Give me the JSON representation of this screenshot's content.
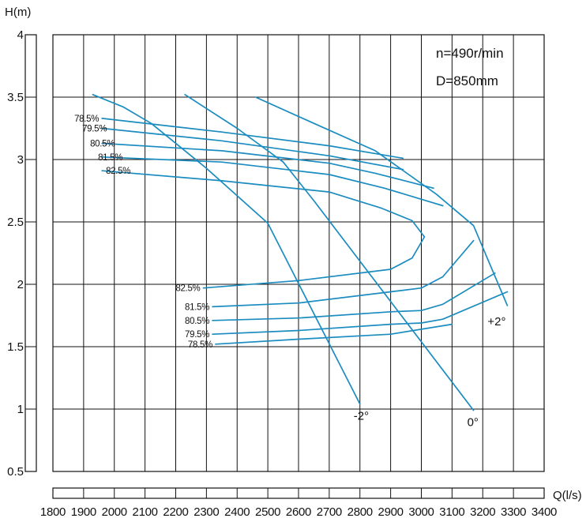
{
  "chart_data": {
    "type": "line",
    "title": "",
    "annotations": [
      "n=490r/min",
      "D=850mm"
    ],
    "xlabel": "Q(l/s)",
    "ylabel": "H(m)",
    "xlim": [
      1800,
      3400
    ],
    "ylim": [
      0.5,
      4
    ],
    "x_ticks": [
      "1800",
      "1900",
      "2000",
      "2100",
      "2200",
      "2300",
      "2400",
      "2500",
      "2600",
      "2700",
      "2800",
      "2900",
      "3000",
      "3100",
      "3200",
      "3300",
      "3400"
    ],
    "y_ticks": [
      {
        "value": 4,
        "label": "4"
      },
      {
        "value": 3.5,
        "label": "3.5"
      },
      {
        "value": 3,
        "label": "3"
      },
      {
        "value": 2.5,
        "label": "2.5"
      },
      {
        "value": 2,
        "label": "2"
      },
      {
        "value": 1.5,
        "label": "1.5"
      },
      {
        "value": 1,
        "label": "1"
      },
      {
        "value": 0.5,
        "label": "0.5"
      }
    ],
    "grid": true,
    "blade_angle_curves": [
      {
        "label": "-2°",
        "points": [
          [
            1930,
            3.52
          ],
          [
            2030,
            3.42
          ],
          [
            2120,
            3.29
          ],
          [
            2300,
            2.93
          ],
          [
            2500,
            2.49
          ],
          [
            2800,
            1.04
          ]
        ]
      },
      {
        "label": "0°",
        "points": [
          [
            2230,
            3.52
          ],
          [
            2400,
            3.25
          ],
          [
            2550,
            2.98
          ],
          [
            2650,
            2.67
          ],
          [
            3170,
            0.99
          ]
        ]
      },
      {
        "label": "+2°",
        "points": [
          [
            2460,
            3.5
          ],
          [
            2650,
            3.29
          ],
          [
            2850,
            3.07
          ],
          [
            3050,
            2.72
          ],
          [
            3170,
            2.47
          ],
          [
            3280,
            1.83
          ]
        ]
      }
    ],
    "efficiency_contours": [
      {
        "label": "78.5%",
        "upper": [
          [
            1960,
            3.33
          ],
          [
            2350,
            3.22
          ],
          [
            2700,
            3.11
          ],
          [
            2940,
            3.01
          ]
        ],
        "lower": [
          [
            2330,
            1.52
          ],
          [
            2600,
            1.56
          ],
          [
            2900,
            1.6
          ],
          [
            3100,
            1.68
          ]
        ]
      },
      {
        "label": "79.5%",
        "upper": [
          [
            1960,
            3.25
          ],
          [
            2350,
            3.15
          ],
          [
            2700,
            3.03
          ],
          [
            2940,
            2.92
          ]
        ],
        "lower": [
          [
            2320,
            1.6
          ],
          [
            2600,
            1.63
          ],
          [
            2900,
            1.68
          ],
          [
            3000,
            1.69
          ],
          [
            3070,
            1.72
          ],
          [
            3280,
            1.94
          ]
        ]
      },
      {
        "label": "80.5%",
        "upper": [
          [
            1960,
            3.13
          ],
          [
            2350,
            3.07
          ],
          [
            2700,
            2.97
          ],
          [
            2850,
            2.89
          ],
          [
            3040,
            2.77
          ]
        ],
        "lower": [
          [
            2320,
            1.71
          ],
          [
            2600,
            1.73
          ],
          [
            2900,
            1.78
          ],
          [
            3000,
            1.79
          ],
          [
            3070,
            1.84
          ],
          [
            3240,
            2.09
          ]
        ]
      },
      {
        "label": "81.5%",
        "upper": [
          [
            1960,
            3.02
          ],
          [
            2350,
            2.98
          ],
          [
            2700,
            2.88
          ],
          [
            2880,
            2.77
          ],
          [
            3070,
            2.63
          ]
        ],
        "lower": [
          [
            2320,
            1.82
          ],
          [
            2600,
            1.85
          ],
          [
            2900,
            1.94
          ],
          [
            3000,
            1.97
          ],
          [
            3070,
            2.06
          ],
          [
            3170,
            2.35
          ]
        ]
      },
      {
        "label": "82.5%",
        "upper": [
          [
            1960,
            2.91
          ],
          [
            2350,
            2.83
          ],
          [
            2700,
            2.74
          ],
          [
            2870,
            2.61
          ],
          [
            2970,
            2.51
          ],
          [
            3010,
            2.38
          ]
        ],
        "lower": [
          [
            2290,
            1.97
          ],
          [
            2600,
            2.03
          ],
          [
            2900,
            2.12
          ],
          [
            2970,
            2.21
          ],
          [
            3010,
            2.38
          ]
        ]
      }
    ]
  }
}
